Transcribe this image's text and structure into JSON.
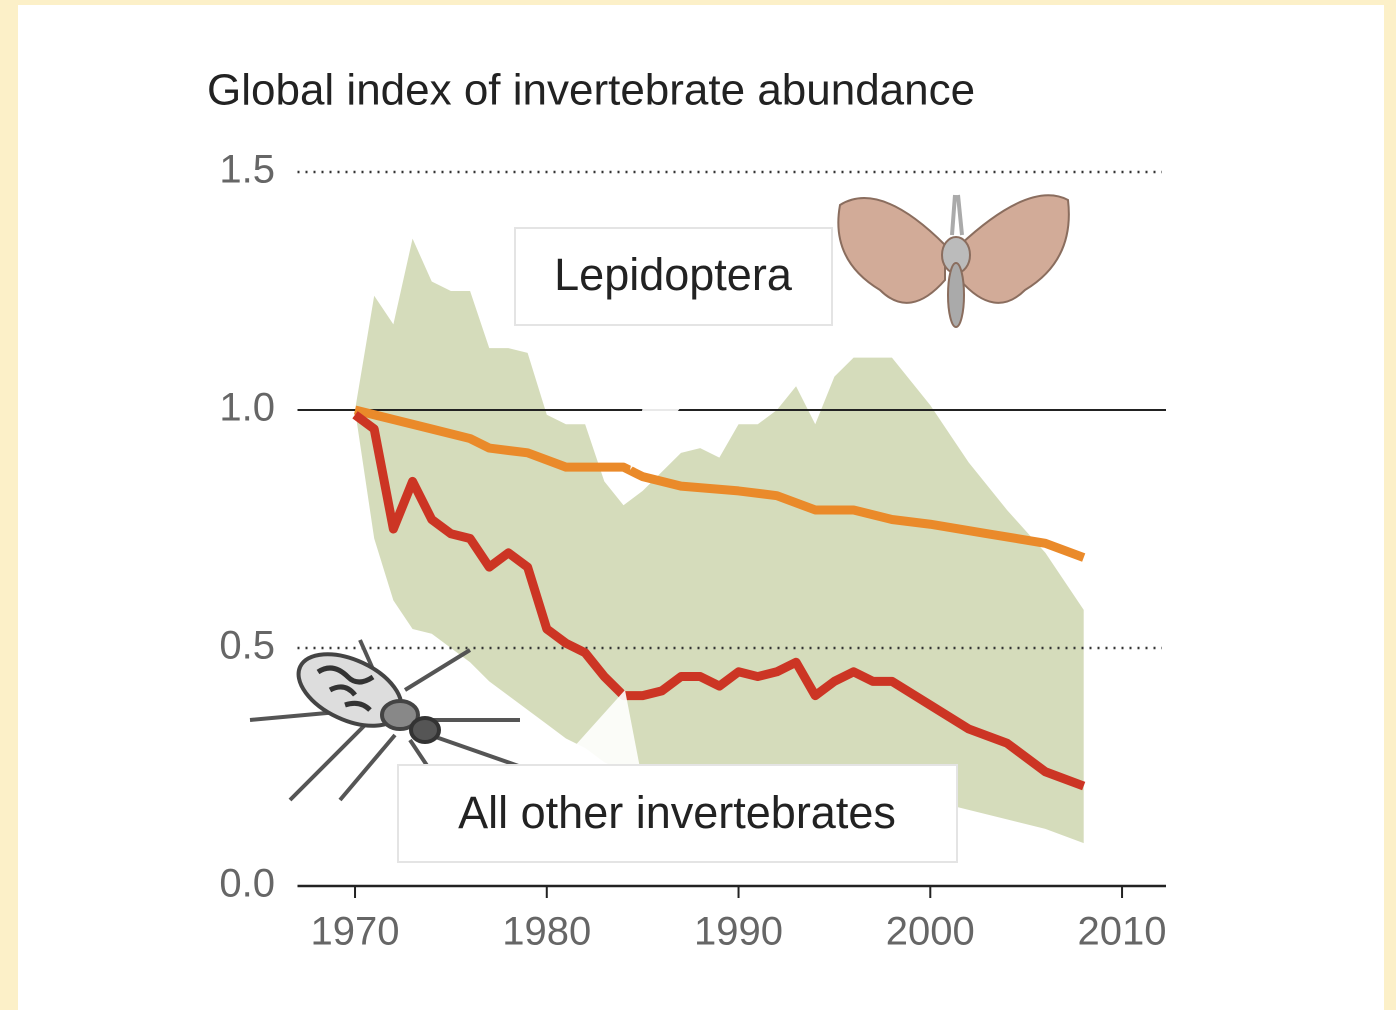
{
  "chart_data": {
    "type": "line",
    "title": "Global index of invertebrate abundance",
    "xlim": [
      1967,
      2012
    ],
    "xticks": [
      1970,
      1980,
      1990,
      2000,
      2010
    ],
    "ylim": [
      0,
      1.5
    ],
    "yticks": [
      {
        "value": 0,
        "label": "0.0"
      },
      0.5,
      {
        "value": 1,
        "label": "1.0"
      },
      1.5
    ],
    "grid": true,
    "reference_line": 1,
    "band": {
      "color": "#d5dcbb",
      "x": [
        1970,
        1971,
        1972,
        1973,
        1974,
        1975,
        1976,
        1977,
        1978,
        1979,
        1980,
        1981,
        1982,
        1983,
        1984,
        1985,
        1986,
        1987,
        1988,
        1989,
        1990,
        1991,
        1992,
        1993,
        1994,
        1995,
        1996,
        1998,
        2000,
        2002,
        2004,
        2006,
        2008
      ],
      "upper": [
        1.0,
        1.24,
        1.18,
        1.36,
        1.27,
        1.25,
        1.25,
        1.13,
        1.13,
        1.12,
        0.99,
        0.97,
        0.97,
        0.85,
        0.8,
        0.83,
        0.87,
        0.91,
        0.92,
        0.9,
        0.97,
        0.97,
        1.0,
        1.05,
        0.97,
        1.07,
        1.11,
        1.11,
        1.01,
        0.89,
        0.79,
        0.7,
        0.58
      ],
      "lower": [
        1.0,
        0.73,
        0.6,
        0.54,
        0.53,
        0.5,
        0.47,
        0.43,
        0.4,
        0.37,
        0.34,
        0.31,
        0.29,
        0.26,
        0.24,
        0.235,
        0.23,
        0.225,
        0.225,
        0.22,
        0.22,
        0.215,
        0.215,
        0.21,
        0.21,
        0.205,
        0.2,
        0.19,
        0.18,
        0.16,
        0.14,
        0.12,
        0.09
      ]
    },
    "series": [
      {
        "name": "Lepidoptera",
        "color": "#ea8a2a",
        "x": [
          1970,
          1972,
          1974,
          1976,
          1977,
          1979,
          1981,
          1983,
          1984,
          1985,
          1987,
          1990,
          1992,
          1994,
          1996,
          1998,
          2000,
          2003,
          2006,
          2008
        ],
        "values": [
          1.0,
          0.98,
          0.96,
          0.94,
          0.92,
          0.91,
          0.88,
          0.88,
          0.88,
          0.86,
          0.84,
          0.83,
          0.82,
          0.79,
          0.79,
          0.77,
          0.76,
          0.74,
          0.72,
          0.69
        ]
      },
      {
        "name": "All other invertebrates",
        "color": "#cc3524",
        "x": [
          1970,
          1971,
          1972,
          1973,
          1974,
          1975,
          1976,
          1977,
          1978,
          1979,
          1980,
          1981,
          1982,
          1983,
          1984,
          1985,
          1986,
          1987,
          1988,
          1989,
          1990,
          1991,
          1992,
          1993,
          1994,
          1995,
          1996,
          1997,
          1998,
          2000,
          2002,
          2004,
          2006,
          2008
        ],
        "values": [
          0.99,
          0.96,
          0.75,
          0.85,
          0.77,
          0.74,
          0.73,
          0.67,
          0.7,
          0.67,
          0.54,
          0.51,
          0.49,
          0.44,
          0.4,
          0.4,
          0.41,
          0.44,
          0.44,
          0.42,
          0.45,
          0.44,
          0.45,
          0.47,
          0.4,
          0.43,
          0.45,
          0.43,
          0.43,
          0.38,
          0.33,
          0.3,
          0.24,
          0.21
        ]
      }
    ]
  }
}
